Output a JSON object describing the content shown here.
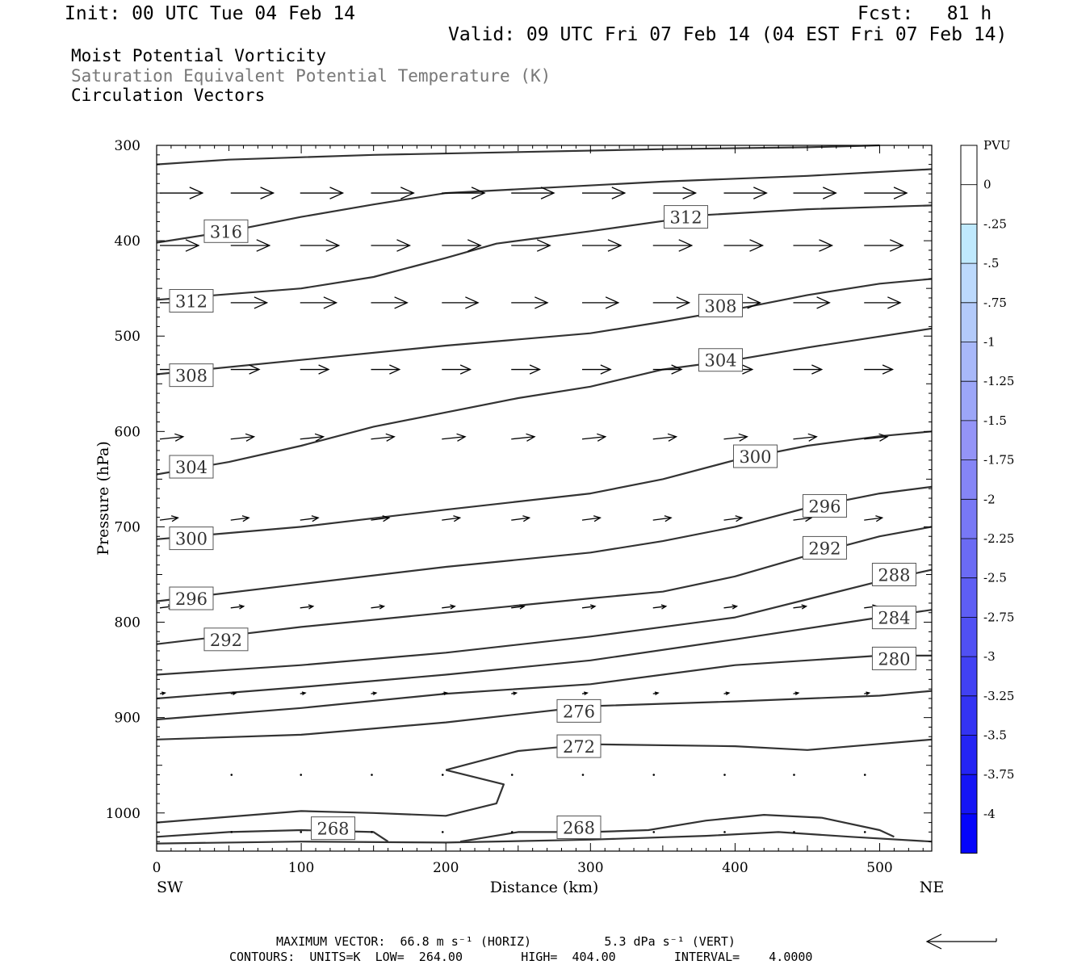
{
  "header": {
    "init": "Init: 00 UTC Tue 04 Feb 14",
    "fcst": "Fcst:   81 h",
    "valid": "Valid: 09 UTC Fri 07 Feb 14 (04 EST Fri 07 Feb 14)",
    "field1": "Moist Potential Vorticity",
    "field2": "Saturation Equivalent Potential Temperature (K)",
    "field3": "Circulation Vectors"
  },
  "footer": {
    "line1": "MAXIMUM VECTOR:  66.8 m s⁻¹ (HORIZ)          5.3 dPa s⁻¹ (VERT)",
    "line2": "CONTOURS:  UNITS=K  LOW=  264.00        HIGH=  404.00        INTERVAL=    4.0000"
  },
  "colors": {
    "contour": "#333333",
    "vector": "#000000",
    "colorbar_low": "#0000ff"
  },
  "chart_data": {
    "type": "cross-section",
    "xlabel": "Distance (km)",
    "ylabel": "Pressure (hPa)",
    "xlim": [
      0,
      536
    ],
    "ylim": [
      1040,
      300
    ],
    "x_ticks": [
      "0",
      "100",
      "200",
      "300",
      "400",
      "500"
    ],
    "y_ticks": [
      "300",
      "400",
      "500",
      "600",
      "700",
      "800",
      "900",
      "1000"
    ],
    "x_left_label": "SW",
    "x_right_label": "NE",
    "grid": false,
    "contours": [
      {
        "value": "",
        "points": [
          [
            0,
            320
          ],
          [
            50,
            315
          ],
          [
            150,
            310
          ],
          [
            250,
            307
          ],
          [
            350,
            304
          ],
          [
            450,
            302
          ],
          [
            500,
            300
          ]
        ]
      },
      {
        "value": "316",
        "points": [
          [
            0,
            402
          ],
          [
            50,
            390
          ],
          [
            100,
            375
          ],
          [
            150,
            362
          ],
          [
            200,
            350
          ],
          [
            250,
            346
          ],
          [
            350,
            338
          ],
          [
            450,
            332
          ],
          [
            536,
            325
          ]
        ]
      },
      {
        "value": "312",
        "points": [
          [
            0,
            462
          ],
          [
            100,
            450
          ],
          [
            150,
            438
          ],
          [
            200,
            418
          ],
          [
            235,
            403
          ],
          [
            300,
            390
          ],
          [
            380,
            373
          ],
          [
            450,
            367
          ],
          [
            536,
            363
          ]
        ]
      },
      {
        "value": "308",
        "points": [
          [
            0,
            540
          ],
          [
            100,
            525
          ],
          [
            200,
            510
          ],
          [
            300,
            497
          ],
          [
            350,
            485
          ],
          [
            400,
            472
          ],
          [
            450,
            457
          ],
          [
            500,
            445
          ],
          [
            536,
            440
          ]
        ]
      },
      {
        "value": "304",
        "points": [
          [
            0,
            645
          ],
          [
            50,
            632
          ],
          [
            100,
            615
          ],
          [
            150,
            595
          ],
          [
            200,
            580
          ],
          [
            250,
            565
          ],
          [
            300,
            553
          ],
          [
            350,
            535
          ],
          [
            400,
            525
          ],
          [
            450,
            512
          ],
          [
            536,
            492
          ]
        ]
      },
      {
        "value": "300",
        "points": [
          [
            0,
            713
          ],
          [
            100,
            700
          ],
          [
            200,
            682
          ],
          [
            300,
            665
          ],
          [
            350,
            650
          ],
          [
            400,
            630
          ],
          [
            450,
            615
          ],
          [
            500,
            605
          ],
          [
            536,
            600
          ]
        ]
      },
      {
        "value": "296",
        "points": [
          [
            0,
            778
          ],
          [
            100,
            760
          ],
          [
            200,
            742
          ],
          [
            300,
            727
          ],
          [
            350,
            715
          ],
          [
            400,
            700
          ],
          [
            450,
            680
          ],
          [
            500,
            665
          ],
          [
            536,
            658
          ]
        ]
      },
      {
        "value": "292",
        "points": [
          [
            0,
            823
          ],
          [
            100,
            805
          ],
          [
            200,
            790
          ],
          [
            300,
            775
          ],
          [
            350,
            768
          ],
          [
            400,
            752
          ],
          [
            450,
            730
          ],
          [
            500,
            710
          ],
          [
            536,
            700
          ]
        ]
      },
      {
        "value": "288",
        "points": [
          [
            0,
            855
          ],
          [
            100,
            845
          ],
          [
            200,
            832
          ],
          [
            300,
            815
          ],
          [
            400,
            795
          ],
          [
            500,
            757
          ],
          [
            536,
            745
          ]
        ]
      },
      {
        "value": "284",
        "points": [
          [
            0,
            880
          ],
          [
            100,
            868
          ],
          [
            200,
            855
          ],
          [
            300,
            840
          ],
          [
            400,
            818
          ],
          [
            500,
            795
          ],
          [
            536,
            787
          ]
        ]
      },
      {
        "value": "280",
        "points": [
          [
            0,
            902
          ],
          [
            100,
            890
          ],
          [
            200,
            875
          ],
          [
            300,
            865
          ],
          [
            400,
            845
          ],
          [
            450,
            840
          ],
          [
            500,
            835
          ],
          [
            536,
            835
          ]
        ]
      },
      {
        "value": "276",
        "points": [
          [
            0,
            923
          ],
          [
            100,
            918
          ],
          [
            200,
            905
          ],
          [
            300,
            888
          ],
          [
            400,
            883
          ],
          [
            500,
            877
          ],
          [
            536,
            872
          ]
        ]
      },
      {
        "value": "272",
        "points": [
          [
            200,
            955
          ],
          [
            250,
            935
          ],
          [
            300,
            928
          ],
          [
            400,
            930
          ],
          [
            450,
            934
          ],
          [
            536,
            923
          ]
        ]
      },
      {
        "value": "272",
        "points": [
          [
            200,
            955
          ],
          [
            240,
            970
          ],
          [
            235,
            990
          ],
          [
            200,
            1003
          ],
          [
            150,
            1000
          ],
          [
            100,
            998
          ],
          [
            0,
            1010
          ]
        ]
      },
      {
        "value": "268",
        "points": [
          [
            0,
            1025
          ],
          [
            50,
            1020
          ],
          [
            100,
            1018
          ],
          [
            150,
            1020
          ],
          [
            160,
            1030
          ]
        ]
      },
      {
        "value": "268",
        "points": [
          [
            210,
            1030
          ],
          [
            250,
            1020
          ],
          [
            300,
            1020
          ],
          [
            340,
            1018
          ],
          [
            380,
            1008
          ],
          [
            420,
            1002
          ],
          [
            460,
            1005
          ],
          [
            500,
            1018
          ],
          [
            510,
            1025
          ]
        ]
      },
      {
        "value": "",
        "points": [
          [
            0,
            1032
          ],
          [
            100,
            1030
          ],
          [
            200,
            1031
          ],
          [
            300,
            1028
          ],
          [
            380,
            1024
          ],
          [
            430,
            1020
          ],
          [
            480,
            1025
          ],
          [
            536,
            1030
          ]
        ]
      }
    ],
    "contour_labels": [
      {
        "text": "316",
        "x": 48,
        "p": 390
      },
      {
        "text": "312",
        "x": 24,
        "p": 463
      },
      {
        "text": "312",
        "x": 366,
        "p": 375
      },
      {
        "text": "308",
        "x": 24,
        "p": 541
      },
      {
        "text": "308",
        "x": 390,
        "p": 468
      },
      {
        "text": "304",
        "x": 24,
        "p": 637
      },
      {
        "text": "304",
        "x": 390,
        "p": 525
      },
      {
        "text": "300",
        "x": 24,
        "p": 712
      },
      {
        "text": "300",
        "x": 414,
        "p": 626
      },
      {
        "text": "296",
        "x": 24,
        "p": 775
      },
      {
        "text": "296",
        "x": 462,
        "p": 678
      },
      {
        "text": "292",
        "x": 48,
        "p": 818
      },
      {
        "text": "292",
        "x": 462,
        "p": 722
      },
      {
        "text": "288",
        "x": 510,
        "p": 750
      },
      {
        "text": "284",
        "x": 510,
        "p": 795
      },
      {
        "text": "280",
        "x": 510,
        "p": 838
      },
      {
        "text": "276",
        "x": 292,
        "p": 893
      },
      {
        "text": "272",
        "x": 292,
        "p": 930
      },
      {
        "text": "268",
        "x": 122,
        "p": 1016
      },
      {
        "text": "268",
        "x": 292,
        "p": 1015
      }
    ],
    "vector_rows": [
      {
        "p": 350,
        "xs": [
          0,
          49,
          97,
          146,
          195,
          243,
          292,
          341,
          390,
          438,
          487
        ],
        "u": 33,
        "w": 0
      },
      {
        "p": 405,
        "xs": [
          0,
          49,
          97,
          146,
          195,
          243,
          292,
          341,
          390,
          438,
          487
        ],
        "u": 30,
        "w": 0
      },
      {
        "p": 465,
        "xs": [
          0,
          49,
          97,
          146,
          195,
          243,
          292,
          341,
          390,
          438,
          487
        ],
        "u": 28,
        "w": 0
      },
      {
        "p": 535,
        "xs": [
          0,
          49,
          97,
          146,
          195,
          243,
          292,
          341,
          390,
          438,
          487
        ],
        "u": 22,
        "w": 0
      },
      {
        "p": 608,
        "xs": [
          0,
          49,
          97,
          146,
          195,
          243,
          292,
          341,
          390,
          438,
          487
        ],
        "u": 18,
        "w": -3
      },
      {
        "p": 693,
        "xs": [
          0,
          49,
          97,
          146,
          195,
          243,
          292,
          341,
          390,
          438,
          487
        ],
        "u": 14,
        "w": -3
      },
      {
        "p": 785,
        "xs": [
          0,
          49,
          97,
          146,
          195,
          243,
          292,
          341,
          390,
          438,
          487
        ],
        "u": 10,
        "w": -2
      },
      {
        "p": 875,
        "xs": [
          0,
          49,
          97,
          146,
          195,
          243,
          292,
          341,
          390,
          438,
          487
        ],
        "u": 4,
        "w": -1
      },
      {
        "p": 960,
        "xs": [
          49,
          97,
          146,
          195,
          243,
          292,
          341,
          390,
          438,
          487
        ],
        "u": 0.6,
        "w": 0
      },
      {
        "p": 1020,
        "xs": [
          49,
          97,
          146,
          195,
          243,
          292,
          341,
          390,
          438,
          487
        ],
        "u": 0.5,
        "w": 0
      }
    ],
    "colorbar": {
      "unit": "PVU",
      "levels": [
        "0",
        "-.25",
        "-.5",
        "-.75",
        "-1",
        "-1.25",
        "-1.5",
        "-1.75",
        "-2",
        "-2.25",
        "-2.5",
        "-2.75",
        "-3",
        "-3.25",
        "-3.5",
        "-3.75",
        "-4"
      ],
      "colors": [
        "#ffffff",
        "#ffffff",
        "#bfe9fd",
        "#bcd9fc",
        "#b3cafa",
        "#a8b8f9",
        "#9ca6f8",
        "#9494f7",
        "#8585f6",
        "#7878f5",
        "#6b6bf4",
        "#5e5ef4",
        "#5050f3",
        "#4141f3",
        "#3333f3",
        "#2424f4",
        "#1515f5",
        "#0505fb"
      ]
    }
  }
}
